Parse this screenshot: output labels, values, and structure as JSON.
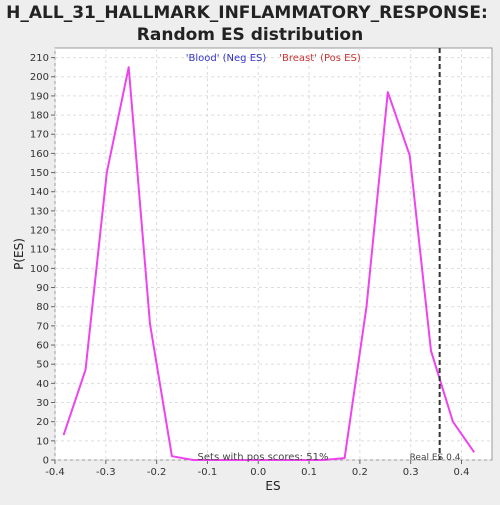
{
  "chart_data": {
    "type": "line",
    "title_line1": "H_ALL_31_HALLMARK_INFLAMMATORY_RESPONSE:",
    "title_line2": "Random ES distribution",
    "xlabel": "ES",
    "ylabel": "P(ES)",
    "legend_neg": "'Blood' (Neg ES)",
    "legend_pos": "'Breast' (Pos ES)",
    "annotation_sets": "Sets with pos scores: 51%",
    "annotation_real": "Real ES 0.4",
    "xlim": [
      -0.4,
      0.46
    ],
    "ylim": [
      0,
      215
    ],
    "x_ticks": [
      -0.4,
      -0.3,
      -0.2,
      -0.1,
      0.0,
      0.1,
      0.2,
      0.3,
      0.4
    ],
    "x_tick_labels": [
      "-0.4",
      "-0.3",
      "-0.2",
      "-0.1",
      "0.0",
      "0.1",
      "0.2",
      "0.3",
      "0.4"
    ],
    "y_ticks": [
      0,
      10,
      20,
      30,
      40,
      50,
      60,
      70,
      80,
      90,
      100,
      110,
      120,
      130,
      140,
      150,
      160,
      170,
      180,
      190,
      200,
      210
    ],
    "series": [
      {
        "color": "#ee44ee",
        "x": [
          -0.383,
          -0.34,
          -0.298,
          -0.255,
          -0.213,
          -0.17,
          -0.128,
          -0.085,
          -0.043,
          0.0,
          0.043,
          0.085,
          0.128,
          0.17,
          0.213,
          0.255,
          0.298,
          0.34,
          0.383,
          0.425
        ],
        "y": [
          13,
          47,
          150,
          205,
          71,
          2,
          0,
          0,
          0,
          0,
          0,
          0,
          0,
          1,
          80,
          192,
          159,
          57,
          20,
          4
        ]
      }
    ],
    "real_es": 0.357,
    "colors": {
      "line": "#ee44ee",
      "neg_label": "#3333cc",
      "pos_label": "#cc3333",
      "grid": "#dddddd",
      "real_es_line": "#333333"
    },
    "grid": true
  }
}
